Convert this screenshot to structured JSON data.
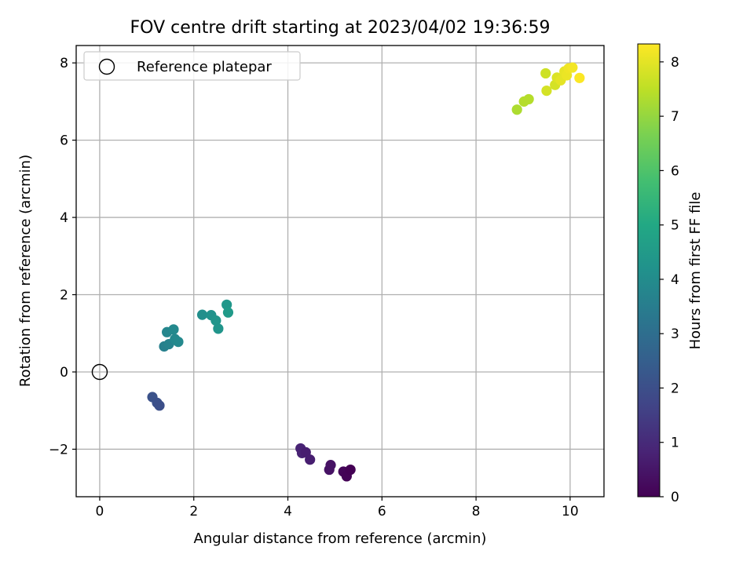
{
  "chart_data": {
    "type": "scatter",
    "title": "FOV centre drift starting at 2023/04/02 19:36:59",
    "xlabel": "Angular distance from reference (arcmin)",
    "ylabel": "Rotation from reference (arcmin)",
    "xlim": [
      -0.5,
      10.72
    ],
    "ylim": [
      -3.23,
      8.45
    ],
    "xticks": [
      0,
      2,
      4,
      6,
      8,
      10
    ],
    "yticks": [
      -2,
      0,
      2,
      4,
      6,
      8
    ],
    "grid": true,
    "legend": {
      "position": "top-left",
      "entries": [
        {
          "label": "Reference platepar",
          "marker": "hollow-circle"
        }
      ]
    },
    "reference_point": {
      "x": 0,
      "y": 0
    },
    "colorbar": {
      "label": "Hours from first FF file",
      "min": 0,
      "max": 8.33,
      "ticks": [
        0,
        1,
        2,
        3,
        4,
        5,
        6,
        7,
        8
      ],
      "colormap": "viridis"
    },
    "points": [
      {
        "x": 4.27,
        "y": -1.98,
        "hours": 0.8
      },
      {
        "x": 4.3,
        "y": -2.1,
        "hours": 0.8
      },
      {
        "x": 4.38,
        "y": -2.08,
        "hours": 0.7
      },
      {
        "x": 4.47,
        "y": -2.27,
        "hours": 0.7
      },
      {
        "x": 4.88,
        "y": -2.53,
        "hours": 0.4
      },
      {
        "x": 4.91,
        "y": -2.41,
        "hours": 0.4
      },
      {
        "x": 5.18,
        "y": -2.58,
        "hours": 0.1
      },
      {
        "x": 5.25,
        "y": -2.7,
        "hours": 0.05
      },
      {
        "x": 5.33,
        "y": -2.53,
        "hours": 0.0
      },
      {
        "x": 1.12,
        "y": -0.65,
        "hours": 2.1
      },
      {
        "x": 1.22,
        "y": -0.8,
        "hours": 2.05
      },
      {
        "x": 1.27,
        "y": -0.87,
        "hours": 2.0
      },
      {
        "x": 1.37,
        "y": 0.66,
        "hours": 3.6
      },
      {
        "x": 1.47,
        "y": 0.72,
        "hours": 3.7
      },
      {
        "x": 1.43,
        "y": 1.03,
        "hours": 3.8
      },
      {
        "x": 1.57,
        "y": 1.1,
        "hours": 3.9
      },
      {
        "x": 1.6,
        "y": 0.85,
        "hours": 3.85
      },
      {
        "x": 1.67,
        "y": 0.78,
        "hours": 3.9
      },
      {
        "x": 2.18,
        "y": 1.48,
        "hours": 4.1
      },
      {
        "x": 2.37,
        "y": 1.47,
        "hours": 4.2
      },
      {
        "x": 2.47,
        "y": 1.33,
        "hours": 4.3
      },
      {
        "x": 2.52,
        "y": 1.12,
        "hours": 4.3
      },
      {
        "x": 2.7,
        "y": 1.74,
        "hours": 4.4
      },
      {
        "x": 2.73,
        "y": 1.54,
        "hours": 4.5
      },
      {
        "x": 8.87,
        "y": 6.79,
        "hours": 7.3
      },
      {
        "x": 9.02,
        "y": 7.0,
        "hours": 7.4
      },
      {
        "x": 9.12,
        "y": 7.06,
        "hours": 7.4
      },
      {
        "x": 9.48,
        "y": 7.73,
        "hours": 7.7
      },
      {
        "x": 9.5,
        "y": 7.28,
        "hours": 7.8
      },
      {
        "x": 9.68,
        "y": 7.43,
        "hours": 7.8
      },
      {
        "x": 9.72,
        "y": 7.62,
        "hours": 7.9
      },
      {
        "x": 9.8,
        "y": 7.55,
        "hours": 8.0
      },
      {
        "x": 9.88,
        "y": 7.78,
        "hours": 8.05
      },
      {
        "x": 9.93,
        "y": 7.68,
        "hours": 8.1
      },
      {
        "x": 9.97,
        "y": 7.86,
        "hours": 8.15
      },
      {
        "x": 10.05,
        "y": 7.88,
        "hours": 8.2
      },
      {
        "x": 10.2,
        "y": 7.61,
        "hours": 8.3
      }
    ]
  }
}
